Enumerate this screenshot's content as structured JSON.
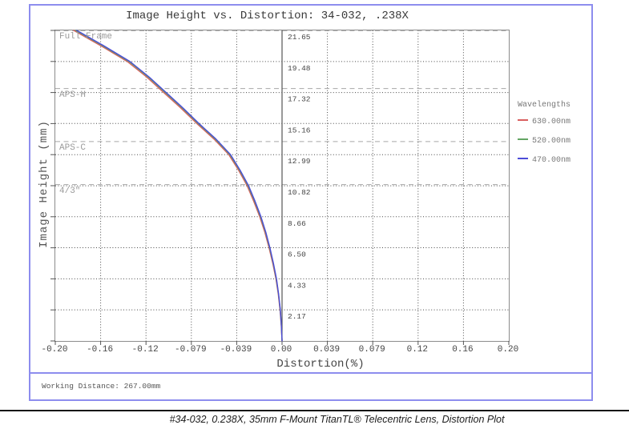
{
  "chart": {
    "title": "Image Height vs. Distortion: 34-032, .238X",
    "x_axis_label": "Distortion(%)",
    "y_axis_label": "Image Height (mm)"
  },
  "chart_data": {
    "type": "line",
    "title": "Image Height vs. Distortion: 34-032, .238X",
    "xlabel": "Distortion(%)",
    "ylabel": "Image Height (mm)",
    "xlim": [
      -0.2,
      0.2
    ],
    "ylim": [
      0,
      21.65
    ],
    "grid": true,
    "legend_position": "right",
    "x_ticks": [
      {
        "v": -0.2,
        "label": "-0.20"
      },
      {
        "v": -0.16,
        "label": "-0.16"
      },
      {
        "v": -0.12,
        "label": "-0.12"
      },
      {
        "v": -0.08,
        "label": "-0.079"
      },
      {
        "v": -0.04,
        "label": "-0.039"
      },
      {
        "v": 0.0,
        "label": "0.00"
      },
      {
        "v": 0.04,
        "label": "0.039"
      },
      {
        "v": 0.08,
        "label": "0.079"
      },
      {
        "v": 0.12,
        "label": "0.12"
      },
      {
        "v": 0.16,
        "label": "0.16"
      },
      {
        "v": 0.2,
        "label": "0.20"
      }
    ],
    "y_ticks": [
      {
        "v": 21.65,
        "label": "21.65"
      },
      {
        "v": 19.48,
        "label": "19.48"
      },
      {
        "v": 17.32,
        "label": "17.32"
      },
      {
        "v": 15.16,
        "label": "15.16"
      },
      {
        "v": 12.99,
        "label": "12.99"
      },
      {
        "v": 10.82,
        "label": "10.82"
      },
      {
        "v": 8.66,
        "label": "8.66"
      },
      {
        "v": 6.5,
        "label": "6.50"
      },
      {
        "v": 4.33,
        "label": "4.33"
      },
      {
        "v": 2.17,
        "label": "2.17"
      }
    ],
    "sensor_lines": [
      {
        "label": "Full Frame",
        "mm": 21.63
      },
      {
        "label": "APS-H",
        "mm": 17.6
      },
      {
        "label": "APS-C",
        "mm": 13.9
      },
      {
        "label": "4/3\"",
        "mm": 10.9
      }
    ],
    "legend": {
      "title": "Wavelengths"
    },
    "series": [
      {
        "name": "630.00nm",
        "color": "#d95f5f",
        "points": [
          [
            -0.1837,
            21.65
          ],
          [
            -0.1596,
            20.57
          ],
          [
            -0.1365,
            19.48
          ],
          [
            -0.1194,
            18.4
          ],
          [
            -0.1044,
            17.32
          ],
          [
            -0.0893,
            16.24
          ],
          [
            -0.0752,
            15.16
          ],
          [
            -0.0601,
            14.08
          ],
          [
            -0.047,
            12.99
          ],
          [
            -0.0384,
            11.91
          ],
          [
            -0.0308,
            10.82
          ],
          [
            -0.025,
            9.74
          ],
          [
            -0.0197,
            8.66
          ],
          [
            -0.0152,
            7.58
          ],
          [
            -0.0115,
            6.5
          ],
          [
            -0.0082,
            5.41
          ],
          [
            -0.0054,
            4.33
          ],
          [
            -0.0033,
            3.25
          ],
          [
            -0.0018,
            2.17
          ],
          [
            -0.0007,
            1.08
          ],
          [
            0.0,
            0.0
          ]
        ]
      },
      {
        "name": "520.00nm",
        "color": "#63a563",
        "points": [
          [
            -0.182,
            21.65
          ],
          [
            -0.158,
            20.57
          ],
          [
            -0.135,
            19.48
          ],
          [
            -0.118,
            18.4
          ],
          [
            -0.103,
            17.32
          ],
          [
            -0.088,
            16.24
          ],
          [
            -0.074,
            15.16
          ],
          [
            -0.059,
            14.08
          ],
          [
            -0.046,
            12.99
          ],
          [
            -0.0375,
            11.91
          ],
          [
            -0.03,
            10.82
          ],
          [
            -0.0242,
            9.74
          ],
          [
            -0.019,
            8.66
          ],
          [
            -0.0146,
            7.58
          ],
          [
            -0.011,
            6.5
          ],
          [
            -0.0078,
            5.41
          ],
          [
            -0.0051,
            4.33
          ],
          [
            -0.0031,
            3.25
          ],
          [
            -0.0016,
            2.17
          ],
          [
            -0.0006,
            1.08
          ],
          [
            0.0,
            0.0
          ]
        ]
      },
      {
        "name": "470.00nm",
        "color": "#4c4cd8",
        "points": [
          [
            -0.181,
            21.65
          ],
          [
            -0.157,
            20.57
          ],
          [
            -0.1341,
            19.48
          ],
          [
            -0.1172,
            18.4
          ],
          [
            -0.1022,
            17.32
          ],
          [
            -0.0873,
            16.24
          ],
          [
            -0.0733,
            15.16
          ],
          [
            -0.0583,
            14.08
          ],
          [
            -0.0454,
            12.99
          ],
          [
            -0.037,
            11.91
          ],
          [
            -0.0295,
            10.82
          ],
          [
            -0.0238,
            9.74
          ],
          [
            -0.0186,
            8.66
          ],
          [
            -0.0143,
            7.58
          ],
          [
            -0.0107,
            6.5
          ],
          [
            -0.0076,
            5.41
          ],
          [
            -0.0049,
            4.33
          ],
          [
            -0.003,
            3.25
          ],
          [
            -0.0015,
            2.17
          ],
          [
            -0.0006,
            1.08
          ],
          [
            0.0,
            0.0
          ]
        ]
      }
    ]
  },
  "footer": {
    "working_distance": "Working Distance: 267.00mm"
  },
  "caption": "#34-032, 0.238X, 35mm F-Mount TitanTL® Telecentric Lens, Distortion Plot",
  "colors": {
    "frame_border": "#8d8dee",
    "plot_border": "#8c8c8c",
    "grid_dots": "#4a4a4a",
    "sensor_dash": "#a8a8a8",
    "zero_axis": "#555555",
    "tick_text": "#444444",
    "divider": "#141414"
  }
}
